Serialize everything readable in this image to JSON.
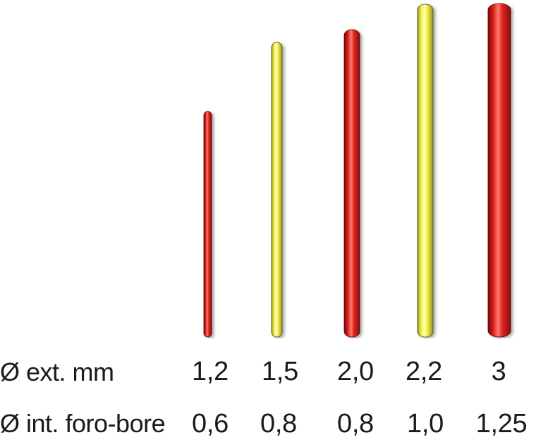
{
  "labels": {
    "outer_diameter": "Ø ext. mm",
    "inner_diameter": "Ø int. foro-bore"
  },
  "colors": {
    "red": "#d41c1c",
    "yellow": "#f4f04e"
  },
  "tubes": [
    {
      "ext": "1,2",
      "int": "0,6",
      "color": "red"
    },
    {
      "ext": "1,5",
      "int": "0,8",
      "color": "yellow"
    },
    {
      "ext": "2,0",
      "int": "0,8",
      "color": "red"
    },
    {
      "ext": "2,2",
      "int": "1,0",
      "color": "yellow"
    },
    {
      "ext": "3",
      "int": "1,25",
      "color": "red"
    }
  ]
}
